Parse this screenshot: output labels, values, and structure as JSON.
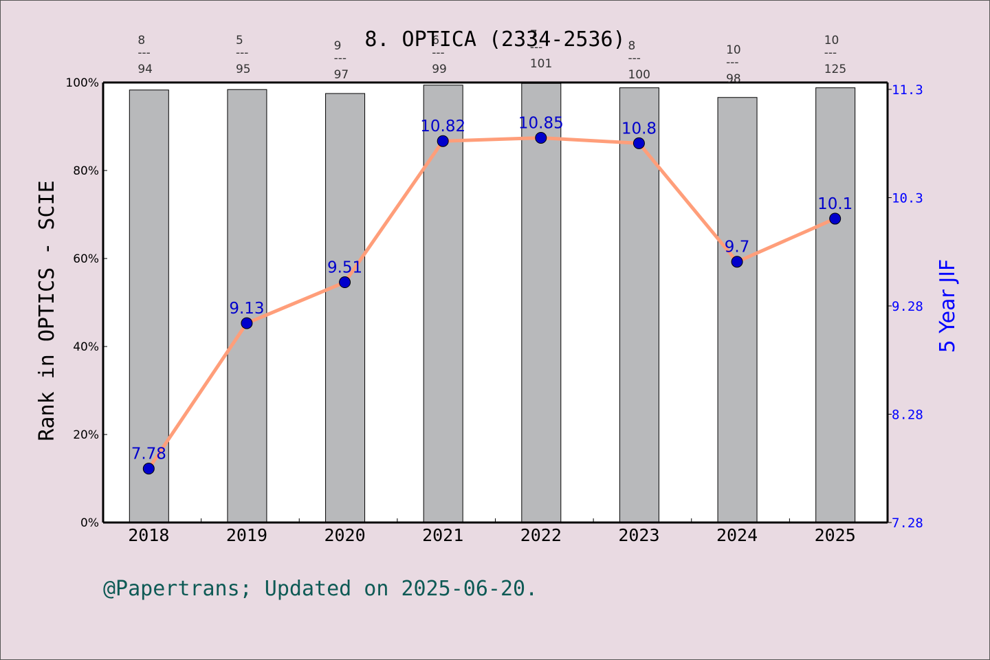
{
  "title": "8. OPTICA (2334-2536)",
  "footer": "@Papertrans; Updated on 2025-06-20.",
  "colors": {
    "background": "#e9dae2",
    "plot_bg": "#ffffff",
    "bar_fill": "#b8b9bb",
    "line": "#ff9e7a",
    "marker": "#0000cc",
    "right_axis": "#0000ff",
    "footer": "#0e5a55"
  },
  "chart_data": {
    "type": "bar+line",
    "title": "8. OPTICA (2334-2536)",
    "categories": [
      "2018",
      "2019",
      "2020",
      "2021",
      "2022",
      "2023",
      "2024",
      "2025"
    ],
    "series": [
      {
        "name": "Rank in OPTICS - SCIE (percentile)",
        "type": "bar",
        "axis": "left",
        "values": [
          98.3,
          98.4,
          97.5,
          99.4,
          99.8,
          98.8,
          96.6,
          98.8
        ]
      },
      {
        "name": "5 Year JIF",
        "type": "line",
        "axis": "right",
        "values": [
          7.78,
          9.13,
          9.51,
          10.82,
          10.85,
          10.8,
          9.7,
          10.1
        ],
        "labels": [
          "7.78",
          "9.13",
          "9.51",
          "10.82",
          "10.85",
          "10.8",
          "9.7",
          "10.1"
        ]
      }
    ],
    "rank_annotations": [
      {
        "year": "2018",
        "rank": "8",
        "total": "94"
      },
      {
        "year": "2019",
        "rank": "5",
        "total": "95"
      },
      {
        "year": "2020",
        "rank": "9",
        "total": "97"
      },
      {
        "year": "2021",
        "rank": "6",
        "total": "99"
      },
      {
        "year": "2022",
        "rank": "7",
        "total": "101"
      },
      {
        "year": "2023",
        "rank": "8",
        "total": "100"
      },
      {
        "year": "2024",
        "rank": "10",
        "total": "98"
      },
      {
        "year": "2025",
        "rank": "10",
        "total": "125"
      }
    ],
    "ylabel": "Rank in OPTICS - SCIE",
    "ylabel_right": "5 Year JIF",
    "xlabel": "",
    "ylim": [
      0,
      100
    ],
    "ylim_right": [
      7.28,
      11.3
    ],
    "yticks_left": [
      "0%",
      "20%",
      "40%",
      "60%",
      "80%",
      "100%"
    ],
    "yticks_right": [
      "7.28",
      "8.28",
      "9.28",
      "10.3",
      "11.3"
    ],
    "grid": false,
    "legend": "none"
  }
}
